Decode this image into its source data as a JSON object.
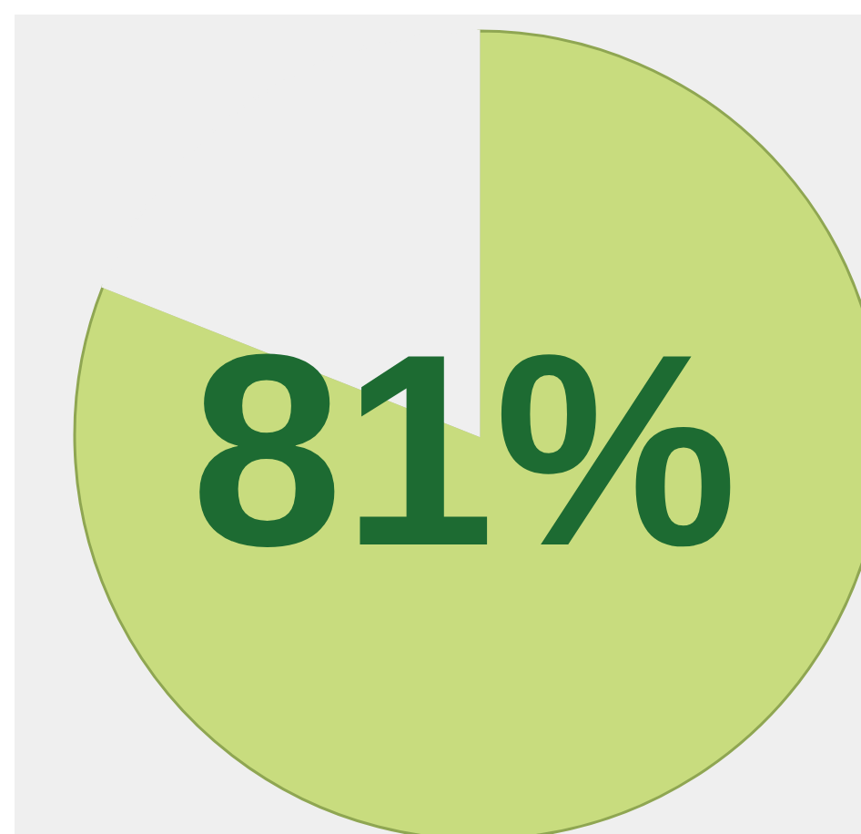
{
  "chart_data": {
    "type": "pie",
    "categories": [
      null,
      null
    ],
    "values": [
      81,
      19
    ],
    "colors": [
      "#c8dc7e",
      "#efefef"
    ],
    "value_labels": [
      "81%",
      null
    ]
  }
}
